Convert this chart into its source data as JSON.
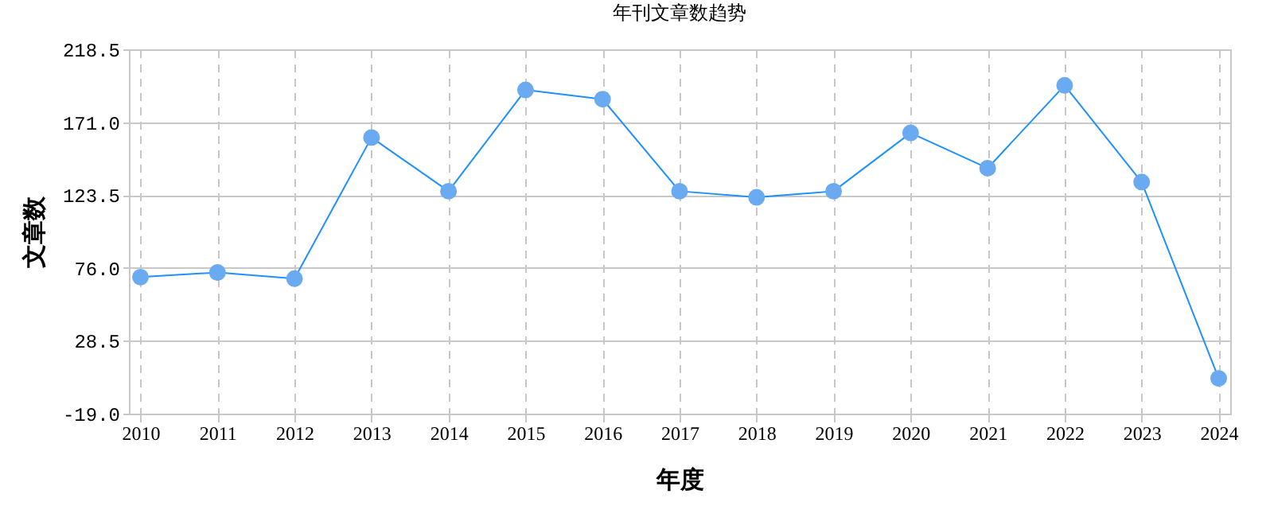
{
  "chart_data": {
    "type": "line",
    "title": "年刊文章数趋势",
    "xlabel": "年度",
    "ylabel": "文章数",
    "categories": [
      "2010",
      "2011",
      "2012",
      "2013",
      "2014",
      "2015",
      "2016",
      "2017",
      "2018",
      "2019",
      "2020",
      "2021",
      "2022",
      "2023",
      "2024"
    ],
    "series": [
      {
        "color": "#1e90ff",
        "values": [
          70,
          73,
          69,
          161,
          126,
          192,
          186,
          126,
          122,
          126,
          164,
          141,
          195,
          132,
          4
        ]
      }
    ],
    "ylim": [
      -19,
      218.5
    ],
    "yticks": [
      {
        "value": -19,
        "label": "-19.0"
      },
      28.5,
      {
        "value": 76,
        "label": "76.0"
      },
      123.5,
      {
        "value": 171,
        "label": "171.0"
      },
      218.5
    ],
    "grid": true,
    "marker": "circle",
    "line_style": "solid",
    "legend": false
  }
}
